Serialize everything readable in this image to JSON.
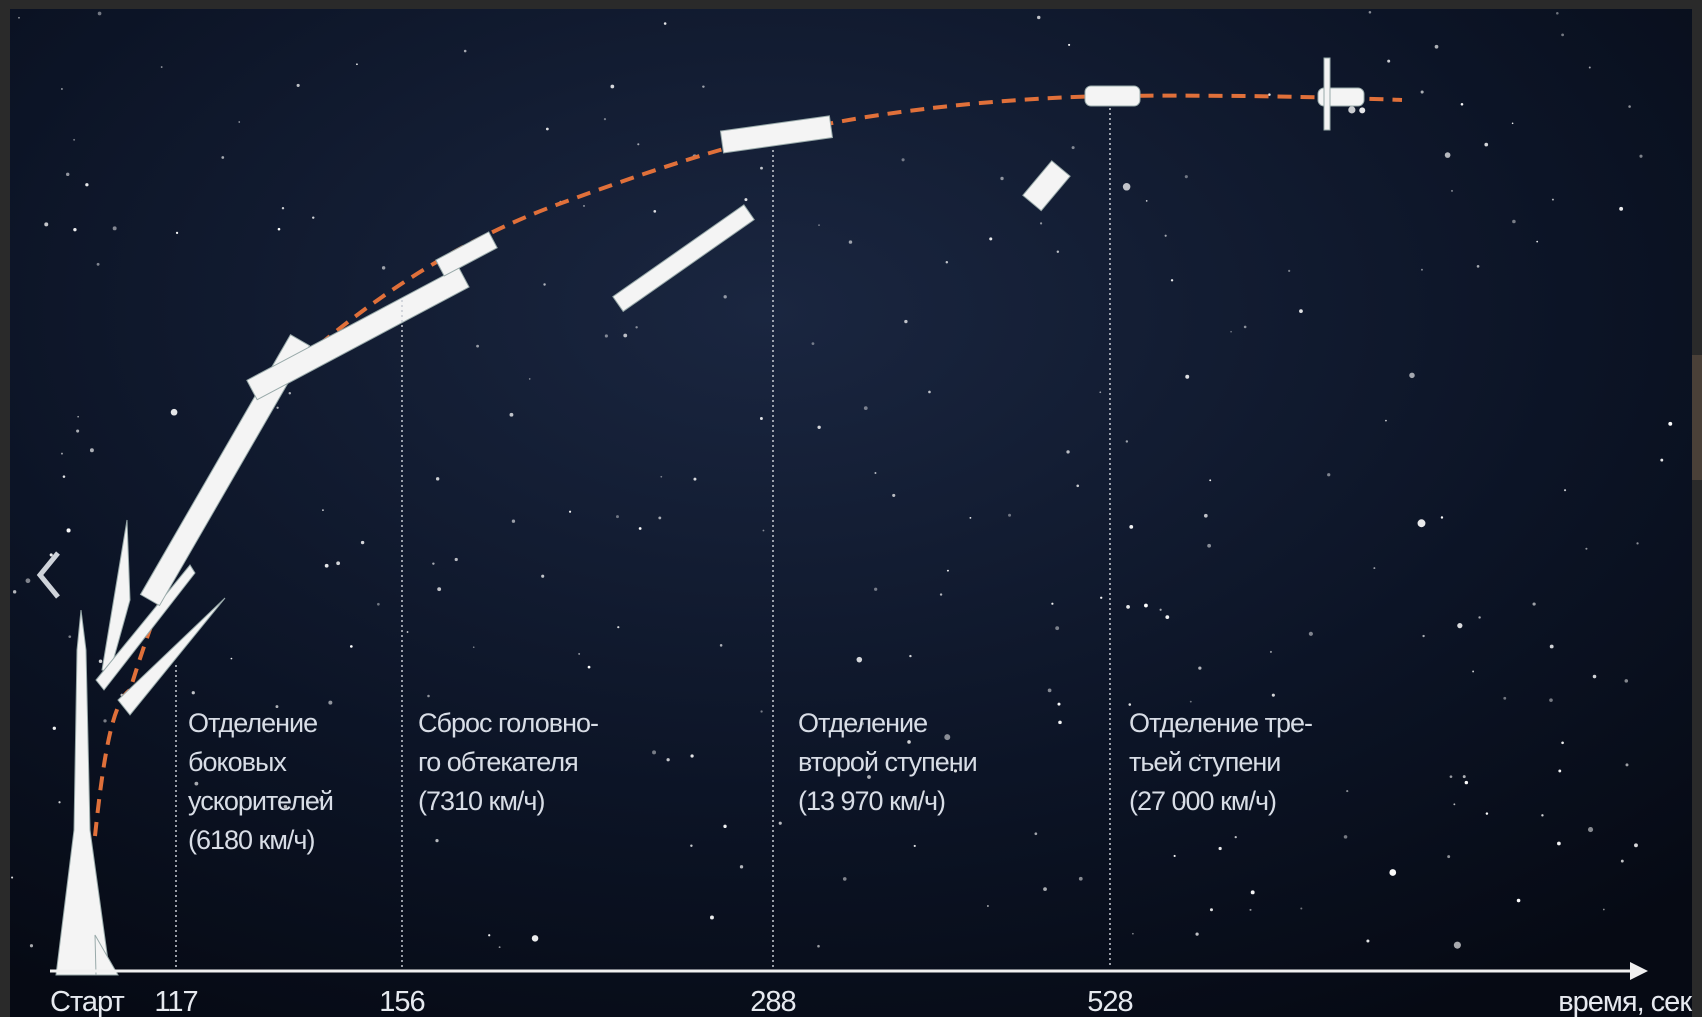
{
  "timeline": {
    "start": "Старт",
    "ticks": [
      "117",
      "156",
      "288",
      "528"
    ],
    "axis_label": "время, сек",
    "events": [
      {
        "lines": [
          "Отделение",
          "боковых",
          "ускорителей",
          "(6180 км/ч)"
        ]
      },
      {
        "lines": [
          "Сброс головно-",
          "го обтекателя",
          "(7310 км/ч)"
        ]
      },
      {
        "lines": [
          "Отделение",
          "второй ступени",
          "(13 970 км/ч)"
        ]
      },
      {
        "lines": [
          "Отделение тре-",
          "тьей ступени",
          "(27 000 км/ч)"
        ]
      }
    ]
  }
}
